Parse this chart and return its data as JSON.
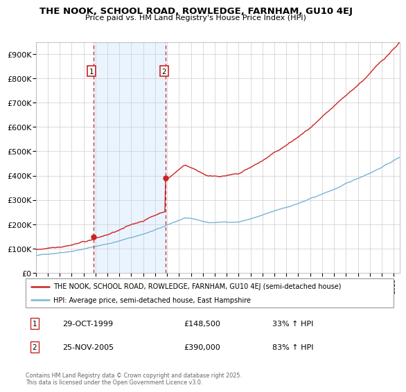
{
  "title": "THE NOOK, SCHOOL ROAD, ROWLEDGE, FARNHAM, GU10 4EJ",
  "subtitle": "Price paid vs. HM Land Registry's House Price Index (HPI)",
  "ylim": [
    0,
    950000
  ],
  "yticks": [
    0,
    100000,
    200000,
    300000,
    400000,
    500000,
    600000,
    700000,
    800000,
    900000
  ],
  "ytick_labels": [
    "£0",
    "£100K",
    "£200K",
    "£300K",
    "£400K",
    "£500K",
    "£600K",
    "£700K",
    "£800K",
    "£900K"
  ],
  "hpi_color": "#7ab3d4",
  "price_color": "#cc2222",
  "vline_color": "#cc2222",
  "sale1_date": 1999.82,
  "sale1_price": 148500,
  "sale1_label": "1",
  "sale1_display": "29-OCT-1999",
  "sale1_amount": "£148,500",
  "sale1_hpi": "33% ↑ HPI",
  "sale2_date": 2005.9,
  "sale2_price": 390000,
  "sale2_label": "2",
  "sale2_display": "25-NOV-2005",
  "sale2_amount": "£390,000",
  "sale2_hpi": "83% ↑ HPI",
  "legend_line1": "THE NOOK, SCHOOL ROAD, ROWLEDGE, FARNHAM, GU10 4EJ (semi-detached house)",
  "legend_line2": "HPI: Average price, semi-detached house, East Hampshire",
  "footnote": "Contains HM Land Registry data © Crown copyright and database right 2025.\nThis data is licensed under the Open Government Licence v3.0.",
  "bg_shade_color": "#ddeeff",
  "marker_box_color": "#cc2222",
  "xmin": 1995,
  "xmax": 2025.5,
  "seed": 42
}
